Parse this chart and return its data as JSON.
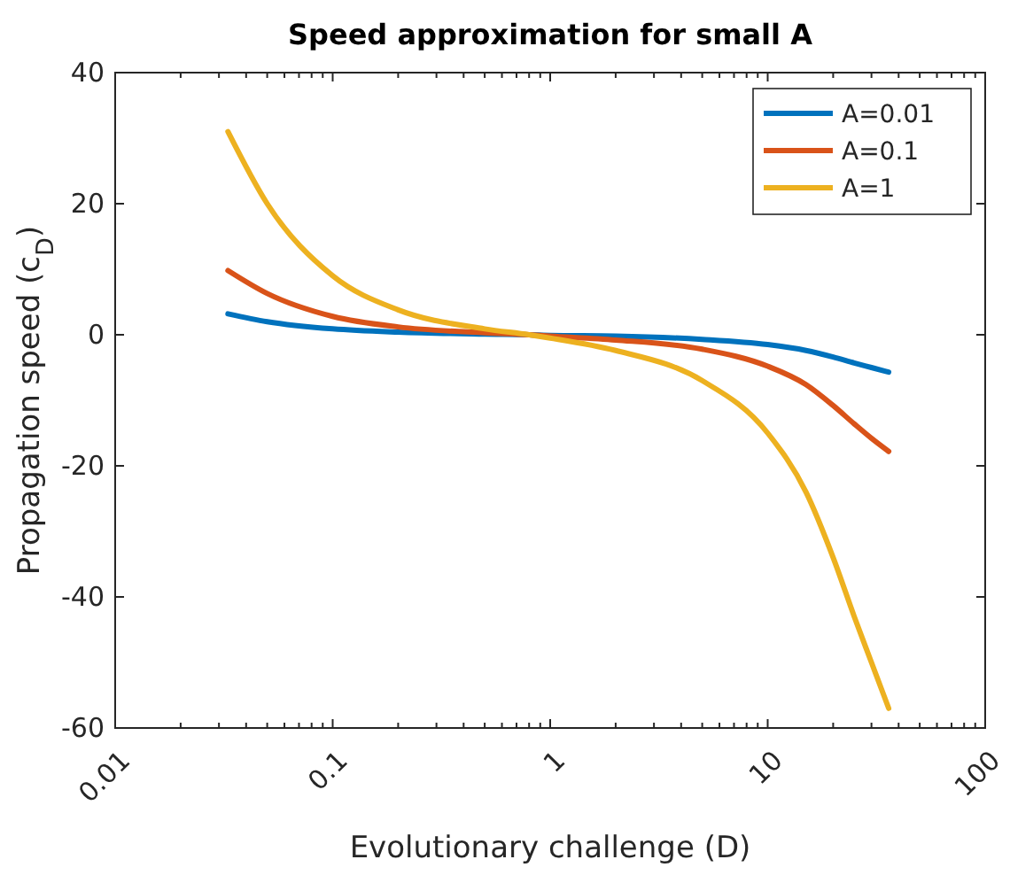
{
  "chart_data": {
    "type": "line",
    "title": "Speed approximation for small A",
    "xlabel": "Evolutionary challenge (D)",
    "ylabel": "Propagation speed (c$_{D}$)",
    "log": "x",
    "x": [
      0.033,
      0.05,
      0.1,
      0.2,
      0.5,
      0.8,
      1,
      2,
      5,
      10,
      15,
      20,
      25,
      30,
      36
    ],
    "series": [
      {
        "name": "A=0.01",
        "color": "#0072bd",
        "values": [
          3.2,
          2.0,
          0.9,
          0.4,
          0.1,
          0,
          -0.1,
          -0.2,
          -0.7,
          -1.5,
          -2.4,
          -3.4,
          -4.3,
          -5,
          -5.7
        ]
      },
      {
        "name": "A=0.1",
        "color": "#d95319",
        "values": [
          9.8,
          6.3,
          2.8,
          1.2,
          0.3,
          0,
          -0.2,
          -0.8,
          -2.2,
          -4.8,
          -7.6,
          -10.8,
          -13.6,
          -15.8,
          -17.8
        ]
      },
      {
        "name": "A=1",
        "color": "#edb120",
        "values": [
          31,
          20,
          9,
          3.8,
          0.9,
          0,
          -0.5,
          -2.4,
          -7,
          -15,
          -24,
          -34,
          -43,
          -50,
          -57
        ]
      }
    ],
    "xlim": [
      0.01,
      100
    ],
    "xticks": [
      0.01,
      {
        "value": 0.02,
        "label": null
      },
      {
        "value": 0.03,
        "label": null
      },
      {
        "value": 0.04,
        "label": null
      },
      {
        "value": 0.05,
        "label": null
      },
      {
        "value": 0.06,
        "label": null
      },
      {
        "value": 0.07,
        "label": null
      },
      {
        "value": 0.08,
        "label": null
      },
      {
        "value": 0.09,
        "label": null
      },
      0.1,
      {
        "value": 0.2,
        "label": null
      },
      {
        "value": 0.3,
        "label": null
      },
      {
        "value": 0.4,
        "label": null
      },
      {
        "value": 0.5,
        "label": null
      },
      {
        "value": 0.6,
        "label": null
      },
      {
        "value": 0.7,
        "label": null
      },
      {
        "value": 0.8,
        "label": null
      },
      {
        "value": 0.9,
        "label": null
      },
      1,
      {
        "value": 2,
        "label": null
      },
      {
        "value": 3,
        "label": null
      },
      {
        "value": 4,
        "label": null
      },
      {
        "value": 5,
        "label": null
      },
      {
        "value": 6,
        "label": null
      },
      {
        "value": 7,
        "label": null
      },
      {
        "value": 8,
        "label": null
      },
      {
        "value": 9,
        "label": null
      },
      10,
      {
        "value": 20,
        "label": null
      },
      {
        "value": 30,
        "label": null
      },
      {
        "value": 40,
        "label": null
      },
      {
        "value": 50,
        "label": null
      },
      {
        "value": 60,
        "label": null
      },
      {
        "value": 70,
        "label": null
      },
      {
        "value": 80,
        "label": null
      },
      {
        "value": 90,
        "label": null
      },
      100
    ],
    "ylim": [
      -60,
      40
    ],
    "yticks": [
      -60,
      -40,
      -20,
      0,
      20,
      40
    ],
    "grid": false,
    "legend": "top right",
    "line_style": "solid",
    "marker": "none"
  }
}
